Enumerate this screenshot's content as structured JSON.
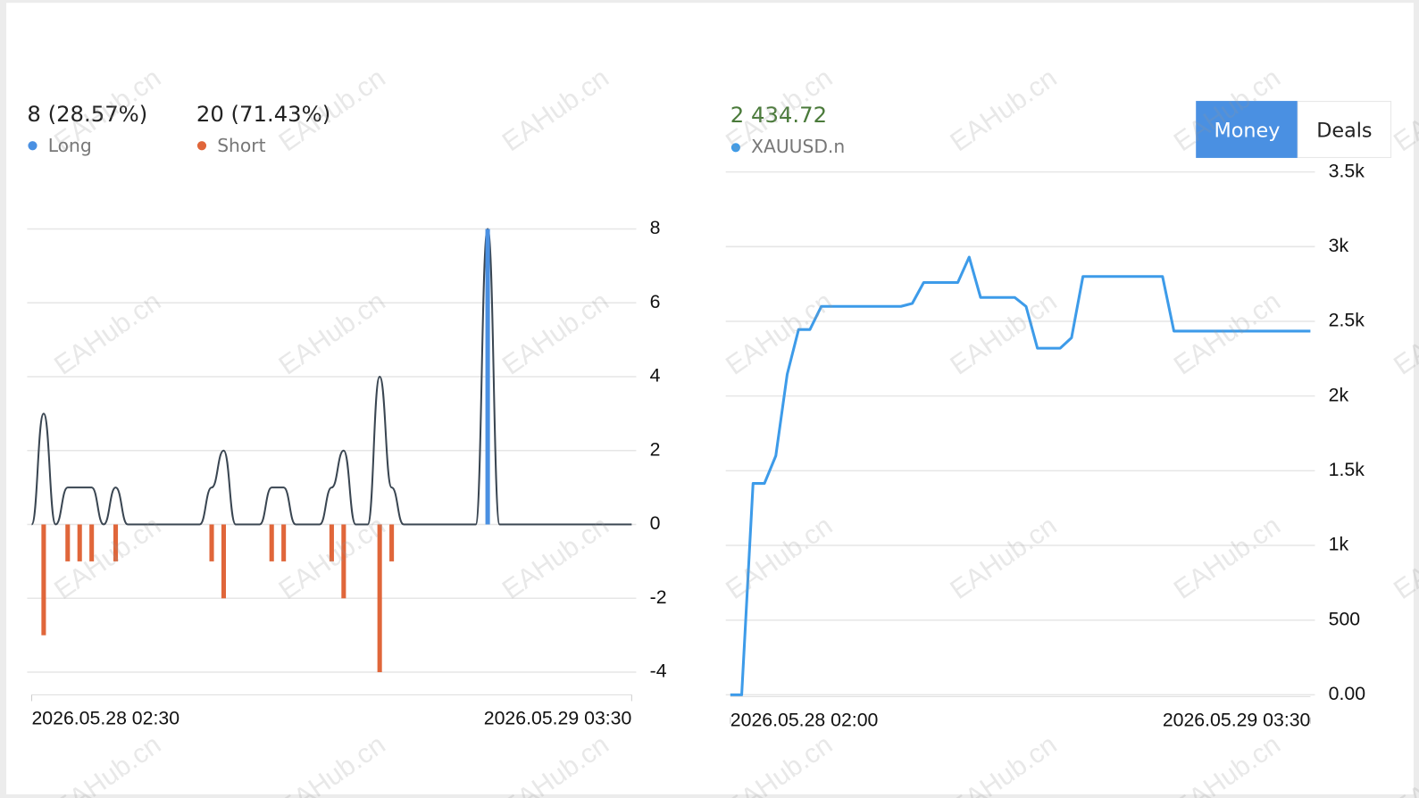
{
  "watermark": "EAHub.cn",
  "controls": {
    "items": [
      "Money",
      "Deals"
    ],
    "active": 0
  },
  "chart_data": [
    {
      "type": "bar",
      "categories": [
        "2026.05.28 02:30",
        null,
        null,
        null,
        null,
        null,
        null,
        null,
        null,
        null,
        null,
        null,
        null,
        null,
        null,
        null,
        null,
        null,
        null,
        null,
        null,
        null,
        null,
        null,
        null,
        null,
        null,
        null,
        null,
        null,
        null,
        null,
        null,
        null,
        null,
        null,
        null,
        null,
        null,
        null,
        null,
        null,
        null,
        null,
        null,
        null,
        null,
        null,
        null,
        null,
        "2026.05.29 03:30"
      ],
      "series": [
        {
          "name": "Long",
          "summary": "8 (28.57%)",
          "color": "#4a90e2",
          "values": [
            0,
            0,
            0,
            0,
            0,
            0,
            0,
            0,
            0,
            0,
            0,
            0,
            0,
            0,
            0,
            0,
            0,
            0,
            0,
            0,
            0,
            0,
            0,
            0,
            0,
            0,
            0,
            0,
            0,
            0,
            0,
            0,
            0,
            0,
            0,
            0,
            0,
            0,
            8,
            0,
            0,
            0,
            0,
            0,
            0,
            0,
            0,
            0,
            0,
            0,
            0
          ]
        },
        {
          "name": "Short",
          "summary": "20 (71.43%)",
          "color": "#e0663a",
          "values": [
            0,
            -3,
            0,
            -1,
            -1,
            -1,
            0,
            -1,
            0,
            0,
            0,
            0,
            0,
            0,
            0,
            -1,
            -2,
            0,
            0,
            0,
            -1,
            -1,
            0,
            0,
            0,
            -1,
            -2,
            0,
            0,
            -4,
            -1,
            0,
            0,
            0,
            0,
            0,
            0,
            0,
            0,
            0,
            0,
            0,
            0,
            0,
            0,
            0,
            0,
            0,
            0,
            0,
            0
          ]
        }
      ],
      "total_line_color": "#3a4652",
      "ylim": [
        -4,
        8
      ],
      "yticks": [
        8,
        6,
        4,
        2,
        0,
        -2,
        -4
      ],
      "grid": true
    },
    {
      "type": "line",
      "categories": [
        "2026.05.28 02:00",
        null,
        null,
        null,
        null,
        null,
        null,
        null,
        null,
        null,
        null,
        null,
        null,
        null,
        null,
        null,
        null,
        null,
        null,
        null,
        null,
        null,
        null,
        null,
        null,
        null,
        null,
        null,
        null,
        null,
        null,
        null,
        null,
        null,
        null,
        null,
        null,
        null,
        null,
        null,
        null,
        null,
        null,
        null,
        null,
        null,
        null,
        null,
        null,
        null,
        null,
        "2026.05.29 03:30"
      ],
      "series": [
        {
          "name": "XAUUSD.n",
          "color": "#3d9be9",
          "values": [
            0,
            0,
            1415,
            1415,
            1600,
            2145,
            2445,
            2445,
            2600,
            2600,
            2600,
            2600,
            2600,
            2600,
            2600,
            2600,
            2620,
            2760,
            2760,
            2760,
            2760,
            2930,
            2660,
            2660,
            2660,
            2660,
            2600,
            2320,
            2320,
            2320,
            2390,
            2800,
            2800,
            2800,
            2800,
            2800,
            2800,
            2800,
            2800,
            2434.72,
            2434.72,
            2434.72,
            2434.72,
            2434.72,
            2434.72,
            2434.72,
            2434.72,
            2434.72,
            2434.72,
            2434.72,
            2434.72,
            2434.72
          ]
        }
      ],
      "current_value": {
        "value": 2434.72,
        "label": "2 434.72"
      },
      "current_value_color": "#4a7a3a",
      "ylim": [
        0,
        3500
      ],
      "yticks": [
        {
          "value": 0,
          "label": "0.00"
        },
        500,
        {
          "value": 1000,
          "label": "1k"
        },
        {
          "value": 1500,
          "label": "1.5k"
        },
        {
          "value": 2000,
          "label": "2k"
        },
        {
          "value": 2500,
          "label": "2.5k"
        },
        {
          "value": 3000,
          "label": "3k"
        },
        {
          "value": 3500,
          "label": "3.5k"
        }
      ],
      "grid": true
    }
  ]
}
